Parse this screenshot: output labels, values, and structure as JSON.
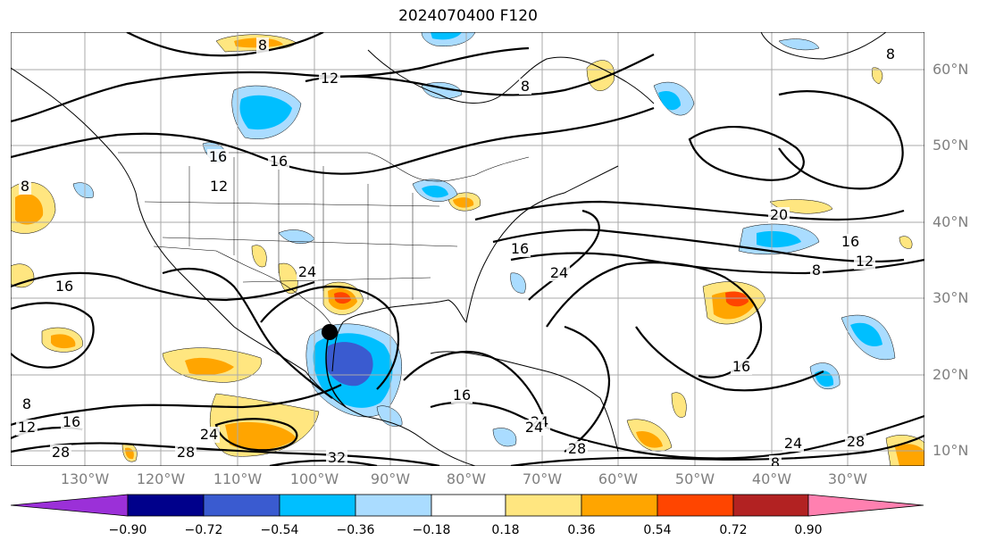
{
  "title": "2024070400 F120",
  "lat_labels": [
    "60°N",
    "50°N",
    "40°N",
    "30°N",
    "20°N",
    "10°N"
  ],
  "lon_labels": [
    "130°W",
    "120°W",
    "110°W",
    "100°W",
    "90°W",
    "80°W",
    "70°W",
    "60°W",
    "50°W",
    "40°W",
    "30°W"
  ],
  "colorbar": {
    "ticks": [
      "−0.90",
      "−0.72",
      "−0.54",
      "−0.36",
      "−0.18",
      "0.18",
      "0.36",
      "0.54",
      "0.72",
      "0.90"
    ],
    "colors": [
      "#9b30d8",
      "#00008b",
      "#3a5bd0",
      "#00bfff",
      "#aadcff",
      "#ffffff",
      "#ffe680",
      "#ffa500",
      "#ff4500",
      "#b22222",
      "#ff80b0"
    ]
  },
  "contour_labels": [
    "8",
    "12",
    "8",
    "8",
    "8",
    "16",
    "16",
    "12",
    "20",
    "16",
    "12",
    "8",
    "16",
    "24",
    "16",
    "24",
    "16",
    "24",
    "12",
    "8",
    "28",
    "24",
    "28",
    "32",
    "28",
    "24",
    "28",
    "8",
    "16",
    "16",
    "24"
  ],
  "features": {
    "storm_marker": "black dot"
  }
}
